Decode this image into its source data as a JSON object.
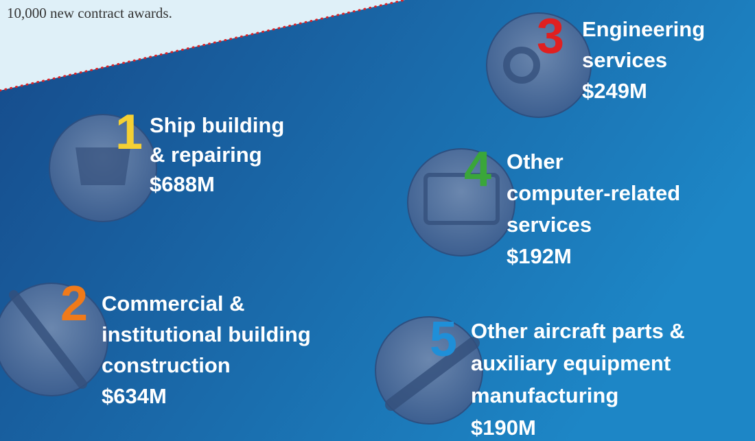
{
  "intro": "10,000 new contract awards.",
  "items": [
    {
      "rank": "1",
      "lines": [
        "Ship building",
        "& repairing"
      ],
      "value": "$688M"
    },
    {
      "rank": "2",
      "lines": [
        "Commercial &",
        "institutional building",
        "construction"
      ],
      "value": "$634M"
    },
    {
      "rank": "3",
      "lines": [
        "Engineering",
        "services"
      ],
      "value": "$249M"
    },
    {
      "rank": "4",
      "lines": [
        "Other",
        "computer-related",
        "services"
      ],
      "value": "$192M"
    },
    {
      "rank": "5",
      "lines": [
        "Other aircraft parts &",
        "auxiliary equipment",
        "manufacturing"
      ],
      "value": "$190M"
    }
  ]
}
